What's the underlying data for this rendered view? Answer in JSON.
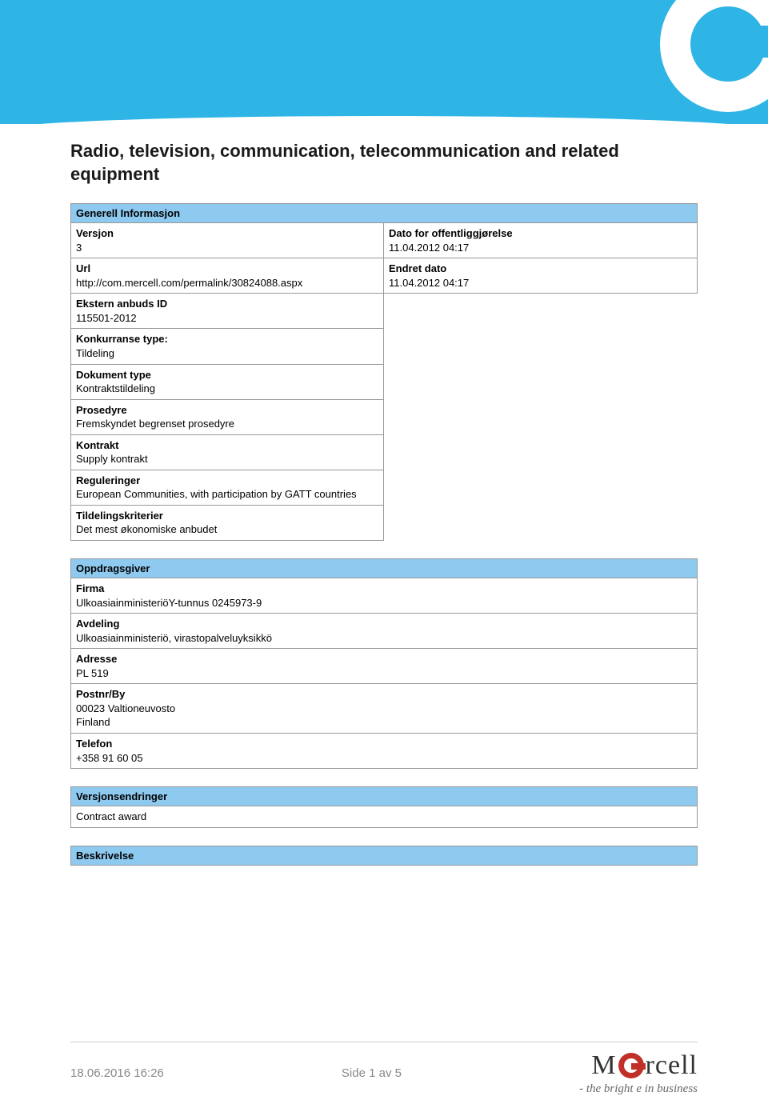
{
  "colors": {
    "banner_bg": "#2fb4e6",
    "section_header_bg": "#8ec9f0",
    "border": "#999999",
    "footer_text": "#888888",
    "logo_red": "#c03029"
  },
  "title": "Radio, television, communication, telecommunication and related equipment",
  "sections": {
    "general": {
      "header": "Generell Informasjon",
      "left": [
        {
          "label": "Versjon",
          "value": "3"
        },
        {
          "label": "Url",
          "value": "http://com.mercell.com/permalink/30824088.aspx"
        },
        {
          "label": "Ekstern anbuds ID",
          "value": "115501-2012"
        },
        {
          "label": "Konkurranse type:",
          "value": "Tildeling"
        },
        {
          "label": "Dokument type",
          "value": "Kontraktstildeling"
        },
        {
          "label": "Prosedyre",
          "value": "Fremskyndet begrenset prosedyre"
        },
        {
          "label": "Kontrakt",
          "value": "Supply kontrakt"
        },
        {
          "label": "Reguleringer",
          "value": "European Communities, with participation by GATT countries"
        },
        {
          "label": "Tildelingskriterier",
          "value": "Det mest økonomiske anbudet"
        }
      ],
      "right": [
        {
          "label": "Dato for offentliggjørelse",
          "value": "11.04.2012 04:17"
        },
        {
          "label": "Endret dato",
          "value": "11.04.2012 04:17"
        }
      ]
    },
    "client": {
      "header": "Oppdragsgiver",
      "rows": [
        {
          "label": "Firma",
          "value": "UlkoasiainministeriöY-tunnus 0245973-9"
        },
        {
          "label": "Avdeling",
          "value": "Ulkoasiainministeriö, virastopalveluyksikkö"
        },
        {
          "label": "Adresse",
          "value": "PL 519"
        },
        {
          "label": "Postnr/By",
          "value": "00023 Valtioneuvosto\nFinland"
        },
        {
          "label": "Telefon",
          "value": "+358 91 60 05"
        }
      ]
    },
    "changes": {
      "header": "Versjonsendringer",
      "rows": [
        {
          "value": "Contract award"
        }
      ]
    },
    "description": {
      "header": "Beskrivelse"
    }
  },
  "footer": {
    "timestamp": "18.06.2016 16:26",
    "page": "Side 1 av 5",
    "brand_m": "M",
    "brand_rcell": "rcell",
    "tagline": "- the bright e in business"
  }
}
